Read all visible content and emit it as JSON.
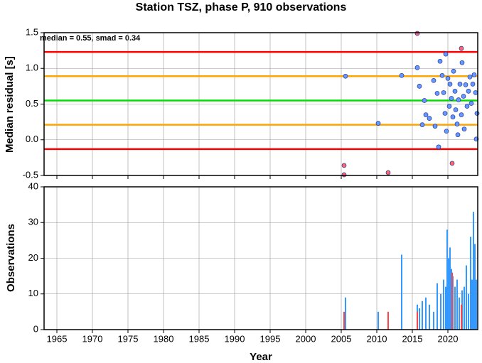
{
  "chart_data": [
    {
      "type": "scatter",
      "title": "Station TSZ, phase P, 910 observations",
      "ylabel": "Median residual [s]",
      "annotation": "median = 0.55, smad = 0.34",
      "xlim": [
        1963.2,
        2024.2
      ],
      "xticks": [
        1965,
        1970,
        1975,
        1980,
        1985,
        1990,
        1995,
        2000,
        2005,
        2010,
        2015,
        2020
      ],
      "ylim": [
        -0.5,
        1.5
      ],
      "yticks": [
        -0.5,
        {
          "value": 0,
          "label": "0.0"
        },
        0.5,
        {
          "value": 1,
          "label": "1.0"
        },
        1.5
      ],
      "grid": true,
      "hlines": [
        {
          "value": 1.23,
          "color": "#ff0000"
        },
        {
          "value": 0.89,
          "color": "#ffa500"
        },
        {
          "value": 0.55,
          "color": "#00e000"
        },
        {
          "value": 0.21,
          "color": "#ffa500"
        },
        {
          "value": -0.13,
          "color": "#ff0000"
        }
      ],
      "series": [
        {
          "color": "#6699ff",
          "x": [
            2005.6,
            2010.2,
            2013.5,
            2015.7,
            2016.0,
            2016.7,
            2016.9,
            2016.4,
            2017.4,
            2018.0,
            2018.2,
            2018.5,
            2018.7,
            2018.9,
            2019.2,
            2019.4,
            2019.6,
            2019.7,
            2019.8,
            2020.0,
            2020.2,
            2020.3,
            2020.5,
            2020.7,
            2020.8,
            2021.0,
            2021.1,
            2021.3,
            2021.5,
            2021.7,
            2021.9,
            2022.0,
            2022.2,
            2022.3,
            2022.5,
            2022.7,
            2022.9,
            2023.1,
            2023.3,
            2023.5,
            2023.7,
            2023.9,
            2024.0,
            2024.1,
            2021.4
          ],
          "values": [
            0.89,
            0.23,
            0.9,
            1.01,
            0.75,
            0.55,
            0.35,
            0.21,
            0.3,
            0.83,
            0.19,
            0.65,
            -0.1,
            1.1,
            0.9,
            0.66,
            0.37,
            1.2,
            0.12,
            0.86,
            0.47,
            0.78,
            0.58,
            0.32,
            0.96,
            0.68,
            0.42,
            0.22,
            0.56,
            0.78,
            0.35,
            1.08,
            0.61,
            0.15,
            0.77,
            0.47,
            0.68,
            0.88,
            0.51,
            0.78,
            0.91,
            0.66,
            0.01,
            0.37,
            0.07
          ]
        },
        {
          "color": "#ff6666",
          "x": [
            2005.4,
            2005.4,
            2011.6,
            2015.7,
            2021.9,
            2020.6
          ],
          "values": [
            -0.36,
            -0.49,
            -0.46,
            1.49,
            1.28,
            -0.33
          ]
        }
      ]
    },
    {
      "type": "bar",
      "ylabel": "Observations",
      "xlabel": "Year",
      "xlim": [
        1963.2,
        2024.2
      ],
      "xticks": [
        1965,
        1970,
        1975,
        1980,
        1985,
        1990,
        1995,
        2000,
        2005,
        2010,
        2015,
        2020
      ],
      "ylim": [
        0,
        40
      ],
      "yticks": [
        0,
        10,
        20,
        30,
        40
      ],
      "grid": true,
      "series": [
        {
          "color": "#3399ff",
          "x": [
            2005.6,
            2010.2,
            2013.5,
            2015.7,
            2016.0,
            2016.4,
            2016.9,
            2017.4,
            2018.0,
            2018.5,
            2019.0,
            2019.4,
            2019.7,
            2019.9,
            2020.1,
            2020.3,
            2020.5,
            2020.7,
            2021.0,
            2021.3,
            2021.6,
            2022.0,
            2022.3,
            2022.6,
            2022.9,
            2023.2,
            2023.4,
            2023.6,
            2023.8,
            2024.0
          ],
          "values": [
            9,
            5,
            21,
            7,
            6,
            8,
            9,
            7,
            5,
            13,
            10,
            14,
            12,
            28,
            20,
            23,
            17,
            15,
            12,
            14,
            9,
            11,
            12,
            18,
            10,
            26,
            14,
            33,
            24,
            14
          ]
        },
        {
          "color": "#ff4444",
          "x": [
            2005.4,
            2011.6,
            2015.7,
            2020.6,
            2021.9
          ],
          "values": [
            5,
            5,
            5,
            16,
            7
          ]
        }
      ]
    }
  ]
}
